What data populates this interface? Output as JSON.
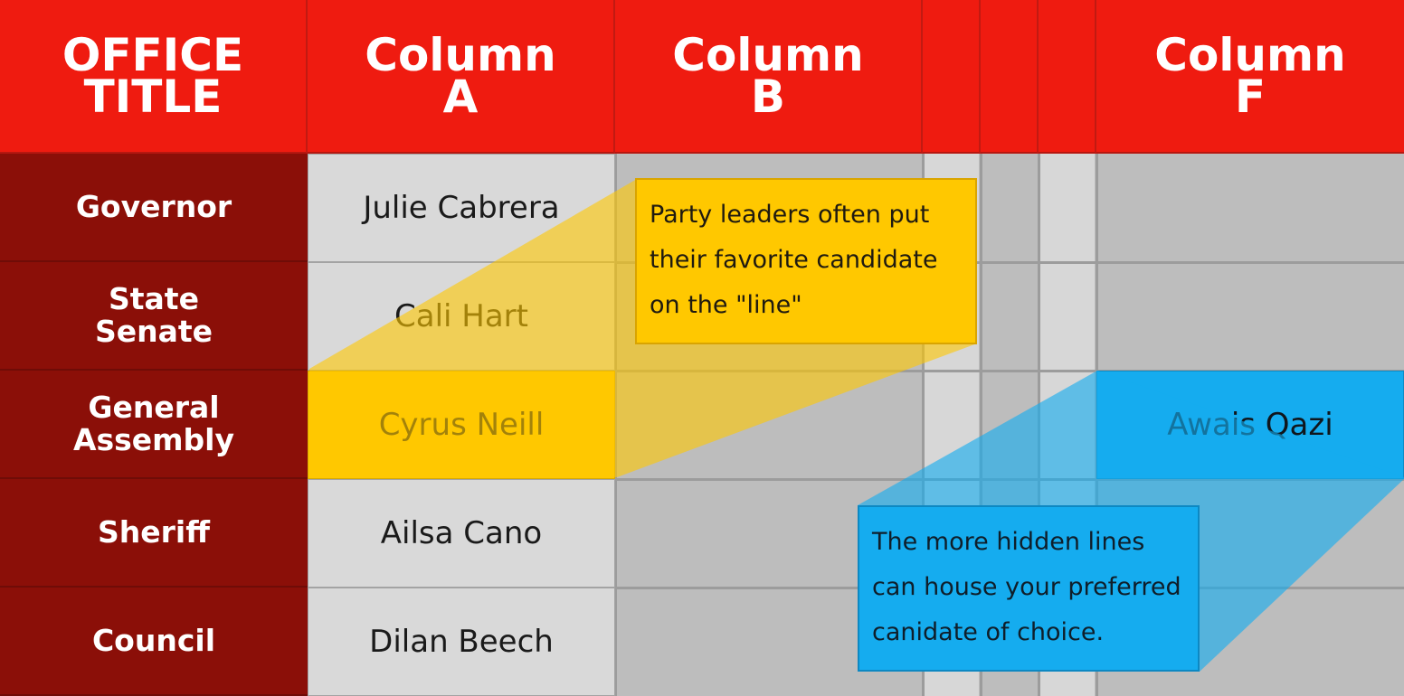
{
  "header": {
    "office_title": "OFFICE\nTITLE",
    "column_a": "Column\nA",
    "column_b": "Column\nB",
    "column_f": "Column\nF"
  },
  "rows": [
    {
      "office": "Governor",
      "column_a": "Julie Cabrera"
    },
    {
      "office": "State\nSenate",
      "column_a": "Cali Hart"
    },
    {
      "office": "General\nAssembly",
      "column_a": "Cyrus Neill",
      "column_f": "Awais Qazi"
    },
    {
      "office": "Sheriff",
      "column_a": "Ailsa Cano"
    },
    {
      "office": "Council",
      "column_a": "Dilan Beech"
    }
  ],
  "callouts": {
    "yellow": "Party leaders often put their favorite candidate on the \"line\"",
    "blue": "The more hidden lines can house your preferred canidate of choice."
  },
  "colors": {
    "header_red": "#ef1b10",
    "office_dark_red": "#8b0f08",
    "highlight_yellow": "#ffc800",
    "highlight_blue": "#15acef",
    "cell_light_gray": "#d9d9d9",
    "grid_gray": "#bdbdbd"
  }
}
